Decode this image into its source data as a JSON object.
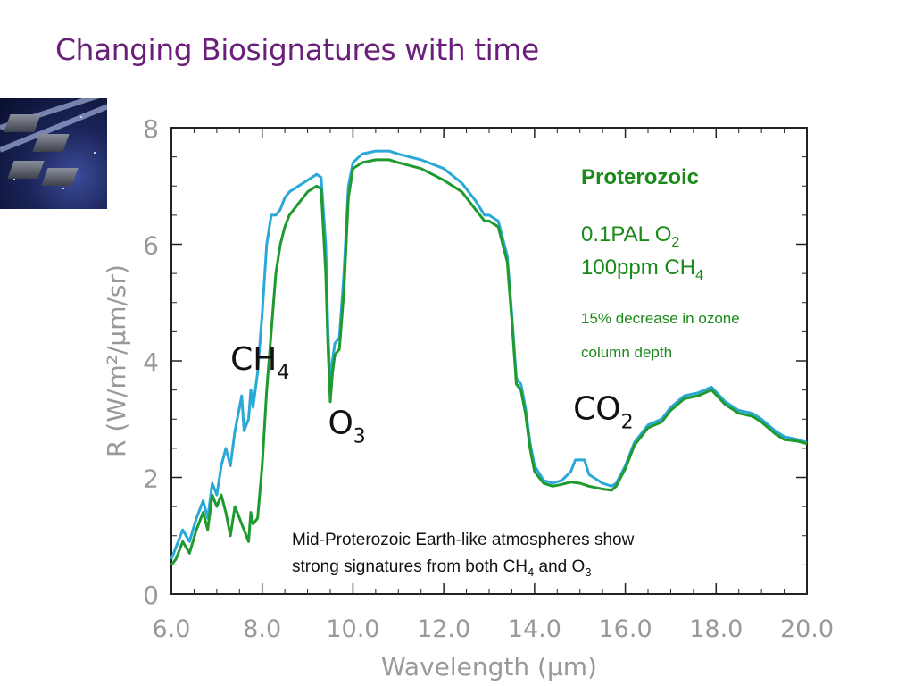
{
  "slide": {
    "title": "Changing Biosignatures with time"
  },
  "thumbnail": {
    "icon": "telescope-array-icon"
  },
  "chart_data": {
    "type": "line",
    "xlabel": "Wavelength (μm)",
    "ylabel": "R (W/m²/μm/sr)",
    "xlim": [
      6.0,
      20.0
    ],
    "ylim": [
      0,
      8
    ],
    "x_ticks": [
      "6.0",
      "8.0",
      "10.0",
      "12.0",
      "14.0",
      "16.0",
      "18.0",
      "20.0"
    ],
    "y_ticks": [
      "0",
      "2",
      "4",
      "6",
      "8"
    ],
    "grid": false,
    "series": [
      {
        "color": "#2aa8d8",
        "points": [
          [
            6.0,
            0.6
          ],
          [
            6.1,
            0.8
          ],
          [
            6.25,
            1.1
          ],
          [
            6.4,
            0.9
          ],
          [
            6.55,
            1.3
          ],
          [
            6.7,
            1.6
          ],
          [
            6.8,
            1.3
          ],
          [
            6.9,
            1.9
          ],
          [
            7.0,
            1.7
          ],
          [
            7.1,
            2.2
          ],
          [
            7.2,
            2.5
          ],
          [
            7.3,
            2.2
          ],
          [
            7.4,
            2.8
          ],
          [
            7.5,
            3.2
          ],
          [
            7.55,
            3.4
          ],
          [
            7.6,
            2.8
          ],
          [
            7.7,
            3.0
          ],
          [
            7.75,
            3.5
          ],
          [
            7.8,
            3.2
          ],
          [
            7.9,
            3.8
          ],
          [
            8.0,
            4.8
          ],
          [
            8.1,
            6.0
          ],
          [
            8.2,
            6.5
          ],
          [
            8.3,
            6.5
          ],
          [
            8.4,
            6.6
          ],
          [
            8.5,
            6.8
          ],
          [
            8.6,
            6.9
          ],
          [
            8.8,
            7.0
          ],
          [
            9.0,
            7.1
          ],
          [
            9.2,
            7.2
          ],
          [
            9.3,
            7.15
          ],
          [
            9.4,
            6.0
          ],
          [
            9.45,
            4.5
          ],
          [
            9.5,
            3.6
          ],
          [
            9.55,
            4.0
          ],
          [
            9.6,
            4.3
          ],
          [
            9.7,
            4.4
          ],
          [
            9.8,
            5.5
          ],
          [
            9.9,
            7.0
          ],
          [
            10.0,
            7.4
          ],
          [
            10.2,
            7.55
          ],
          [
            10.5,
            7.6
          ],
          [
            10.8,
            7.6
          ],
          [
            11.0,
            7.55
          ],
          [
            11.5,
            7.45
          ],
          [
            12.0,
            7.3
          ],
          [
            12.4,
            7.05
          ],
          [
            12.7,
            6.75
          ],
          [
            12.9,
            6.5
          ],
          [
            13.0,
            6.5
          ],
          [
            13.2,
            6.4
          ],
          [
            13.4,
            5.8
          ],
          [
            13.5,
            4.8
          ],
          [
            13.6,
            3.7
          ],
          [
            13.7,
            3.6
          ],
          [
            13.8,
            3.2
          ],
          [
            13.9,
            2.6
          ],
          [
            14.0,
            2.2
          ],
          [
            14.2,
            1.95
          ],
          [
            14.4,
            1.9
          ],
          [
            14.6,
            1.95
          ],
          [
            14.8,
            2.1
          ],
          [
            14.9,
            2.3
          ],
          [
            15.1,
            2.3
          ],
          [
            15.2,
            2.05
          ],
          [
            15.5,
            1.9
          ],
          [
            15.7,
            1.85
          ],
          [
            15.8,
            1.9
          ],
          [
            16.0,
            2.2
          ],
          [
            16.2,
            2.6
          ],
          [
            16.5,
            2.9
          ],
          [
            16.8,
            3.0
          ],
          [
            17.0,
            3.2
          ],
          [
            17.3,
            3.4
          ],
          [
            17.6,
            3.45
          ],
          [
            17.9,
            3.55
          ],
          [
            18.2,
            3.3
          ],
          [
            18.5,
            3.15
          ],
          [
            18.8,
            3.1
          ],
          [
            19.0,
            3.0
          ],
          [
            19.3,
            2.8
          ],
          [
            19.5,
            2.7
          ],
          [
            19.8,
            2.65
          ],
          [
            20.0,
            2.6
          ]
        ]
      },
      {
        "color": "#1f9a2e",
        "points": [
          [
            6.0,
            0.5
          ],
          [
            6.1,
            0.6
          ],
          [
            6.25,
            0.9
          ],
          [
            6.4,
            0.7
          ],
          [
            6.55,
            1.1
          ],
          [
            6.7,
            1.4
          ],
          [
            6.8,
            1.1
          ],
          [
            6.9,
            1.7
          ],
          [
            7.0,
            1.5
          ],
          [
            7.1,
            1.7
          ],
          [
            7.2,
            1.4
          ],
          [
            7.3,
            1.0
          ],
          [
            7.4,
            1.5
          ],
          [
            7.5,
            1.3
          ],
          [
            7.6,
            1.1
          ],
          [
            7.7,
            0.9
          ],
          [
            7.75,
            1.4
          ],
          [
            7.8,
            1.2
          ],
          [
            7.9,
            1.3
          ],
          [
            8.0,
            2.2
          ],
          [
            8.1,
            3.5
          ],
          [
            8.2,
            4.5
          ],
          [
            8.3,
            5.5
          ],
          [
            8.4,
            6.0
          ],
          [
            8.5,
            6.3
          ],
          [
            8.6,
            6.5
          ],
          [
            8.8,
            6.7
          ],
          [
            9.0,
            6.9
          ],
          [
            9.2,
            7.0
          ],
          [
            9.3,
            6.95
          ],
          [
            9.4,
            5.5
          ],
          [
            9.45,
            4.2
          ],
          [
            9.5,
            3.3
          ],
          [
            9.55,
            3.8
          ],
          [
            9.6,
            4.1
          ],
          [
            9.7,
            4.2
          ],
          [
            9.8,
            5.2
          ],
          [
            9.9,
            6.8
          ],
          [
            10.0,
            7.3
          ],
          [
            10.2,
            7.4
          ],
          [
            10.5,
            7.45
          ],
          [
            10.8,
            7.45
          ],
          [
            11.0,
            7.4
          ],
          [
            11.5,
            7.3
          ],
          [
            12.0,
            7.1
          ],
          [
            12.4,
            6.9
          ],
          [
            12.7,
            6.6
          ],
          [
            12.9,
            6.4
          ],
          [
            13.0,
            6.4
          ],
          [
            13.2,
            6.3
          ],
          [
            13.4,
            5.7
          ],
          [
            13.5,
            4.7
          ],
          [
            13.6,
            3.6
          ],
          [
            13.7,
            3.5
          ],
          [
            13.8,
            3.1
          ],
          [
            13.9,
            2.5
          ],
          [
            14.0,
            2.1
          ],
          [
            14.2,
            1.9
          ],
          [
            14.4,
            1.85
          ],
          [
            14.6,
            1.88
          ],
          [
            14.8,
            1.92
          ],
          [
            15.0,
            1.9
          ],
          [
            15.2,
            1.85
          ],
          [
            15.5,
            1.8
          ],
          [
            15.7,
            1.78
          ],
          [
            15.8,
            1.85
          ],
          [
            16.0,
            2.15
          ],
          [
            16.2,
            2.55
          ],
          [
            16.5,
            2.85
          ],
          [
            16.8,
            2.95
          ],
          [
            17.0,
            3.15
          ],
          [
            17.3,
            3.35
          ],
          [
            17.6,
            3.4
          ],
          [
            17.9,
            3.5
          ],
          [
            18.2,
            3.25
          ],
          [
            18.5,
            3.1
          ],
          [
            18.8,
            3.05
          ],
          [
            19.0,
            2.95
          ],
          [
            19.3,
            2.75
          ],
          [
            19.5,
            2.65
          ],
          [
            19.8,
            2.62
          ],
          [
            20.0,
            2.58
          ]
        ]
      }
    ],
    "annotations": {
      "ch4": {
        "main": "CH",
        "sub": "4",
        "x": 7.3,
        "y": 3.85
      },
      "o3": {
        "main": "O",
        "sub": "3",
        "x": 9.45,
        "y": 2.75
      },
      "co2": {
        "main": "CO",
        "sub": "2",
        "x": 14.85,
        "y": 3.0
      }
    },
    "legend_panel": {
      "heading": "Proterozoic",
      "line1_main": "0.1PAL O",
      "line1_sub": "2",
      "line2_main": "100ppm CH",
      "line2_sub": "4",
      "note_line1": "15% decrease in ozone",
      "note_line2": "column depth",
      "color": "#1a8a1a"
    },
    "caption": {
      "line1": "Mid-Proterozoic Earth-like atmospheres show",
      "line2_a": "strong signatures from both CH",
      "line2_sub1": "4",
      "line2_b": " and O",
      "line2_sub2": "3"
    }
  }
}
